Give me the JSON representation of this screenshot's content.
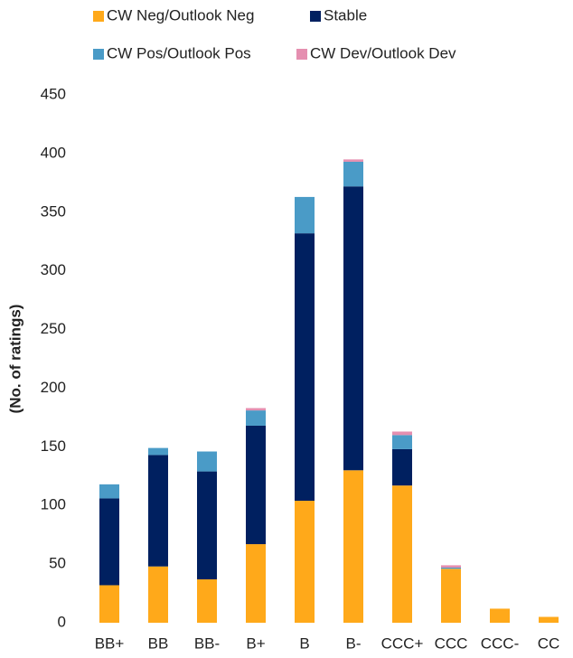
{
  "chart_data": {
    "type": "stacked_bar",
    "y_label": "(No. of ratings)",
    "categories": [
      "BB+",
      "BB",
      "BB-",
      "B+",
      "B",
      "B-",
      "CCC+",
      "CCC",
      "CCC-",
      "CC"
    ],
    "series": [
      {
        "name": "CW Neg/Outlook Neg",
        "color": "#FFA91A",
        "values": [
          32,
          48,
          37,
          67,
          104,
          130,
          117,
          46,
          12,
          5
        ]
      },
      {
        "name": "Stable",
        "color": "#002060",
        "values": [
          74,
          95,
          92,
          101,
          228,
          242,
          31,
          0,
          0,
          0
        ]
      },
      {
        "name": "CW Pos/Outlook Pos",
        "color": "#4A9BC7",
        "values": [
          12,
          6,
          17,
          13,
          31,
          21,
          12,
          1,
          0,
          0
        ]
      },
      {
        "name": "CW Dev/Outlook Dev",
        "color": "#E58FB0",
        "values": [
          0,
          0,
          0,
          2,
          0,
          2,
          3,
          2,
          0,
          0
        ]
      }
    ],
    "ylim": [
      0,
      450
    ],
    "yticks": [
      0,
      50,
      100,
      150,
      200,
      250,
      300,
      350,
      400,
      450
    ],
    "grid": false
  }
}
